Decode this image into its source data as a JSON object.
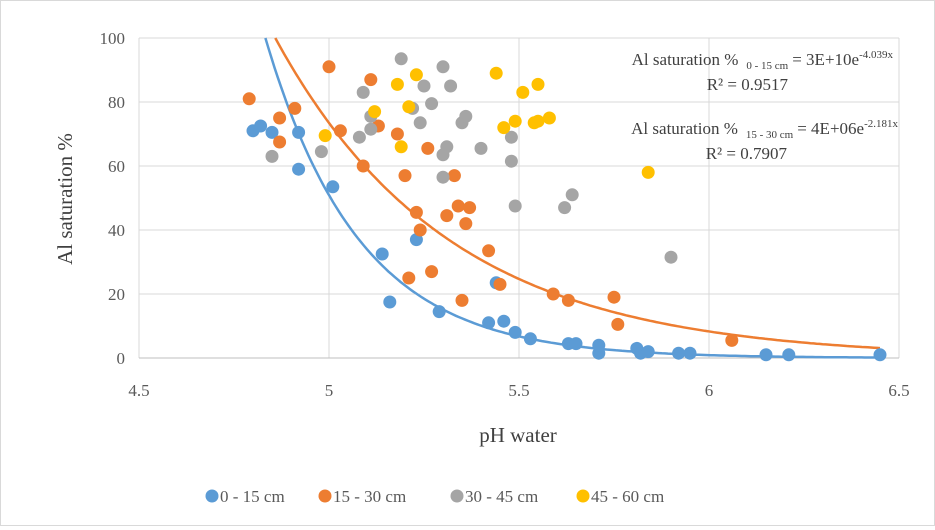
{
  "chart_data": {
    "type": "scatter",
    "xlabel": "pH water",
    "ylabel": "Al saturation %",
    "xlim": [
      4.5,
      6.5
    ],
    "ylim": [
      0,
      100
    ],
    "x_ticks": [
      "4.5",
      "5",
      "5.5",
      "6",
      "6.5"
    ],
    "y_ticks": [
      "0",
      "20",
      "40",
      "60",
      "80",
      "100"
    ],
    "grid": true,
    "legend_position": "bottom",
    "series": [
      {
        "name": "0 - 15 cm",
        "color": "#5b9bd5",
        "points": [
          [
            4.8,
            71
          ],
          [
            4.82,
            72.5
          ],
          [
            4.85,
            70.5
          ],
          [
            4.92,
            70.5
          ],
          [
            4.92,
            59
          ],
          [
            5.01,
            53.5
          ],
          [
            5.14,
            32.5
          ],
          [
            5.16,
            17.5
          ],
          [
            5.23,
            37
          ],
          [
            5.29,
            14.5
          ],
          [
            5.42,
            11
          ],
          [
            5.44,
            23.5
          ],
          [
            5.46,
            11.5
          ],
          [
            5.49,
            8
          ],
          [
            5.53,
            6
          ],
          [
            5.63,
            4.5
          ],
          [
            5.65,
            4.5
          ],
          [
            5.71,
            1.5
          ],
          [
            5.71,
            4
          ],
          [
            5.81,
            3
          ],
          [
            5.82,
            1.5
          ],
          [
            5.84,
            2
          ],
          [
            5.92,
            1.5
          ],
          [
            5.95,
            1.5
          ],
          [
            6.15,
            1
          ],
          [
            6.21,
            1
          ],
          [
            6.45,
            1
          ]
        ]
      },
      {
        "name": "15 - 30 cm",
        "color": "#ed7d31",
        "points": [
          [
            4.79,
            81
          ],
          [
            4.87,
            67.5
          ],
          [
            4.87,
            75
          ],
          [
            4.91,
            78
          ],
          [
            5.0,
            91
          ],
          [
            5.03,
            71
          ],
          [
            5.09,
            60
          ],
          [
            5.11,
            87
          ],
          [
            5.13,
            72.5
          ],
          [
            5.18,
            70
          ],
          [
            5.2,
            57
          ],
          [
            5.21,
            25
          ],
          [
            5.23,
            45.5
          ],
          [
            5.24,
            40
          ],
          [
            5.26,
            65.5
          ],
          [
            5.27,
            27
          ],
          [
            5.31,
            44.5
          ],
          [
            5.33,
            57
          ],
          [
            5.34,
            47.5
          ],
          [
            5.35,
            18
          ],
          [
            5.36,
            42
          ],
          [
            5.37,
            47
          ],
          [
            5.42,
            33.5
          ],
          [
            5.45,
            23
          ],
          [
            5.59,
            20
          ],
          [
            5.63,
            18
          ],
          [
            5.75,
            19
          ],
          [
            5.76,
            10.5
          ],
          [
            6.06,
            5.5
          ]
        ]
      },
      {
        "name": "30 - 45 cm",
        "color": "#a5a5a5",
        "points": [
          [
            4.85,
            63
          ],
          [
            4.98,
            64.5
          ],
          [
            5.08,
            69
          ],
          [
            5.09,
            83
          ],
          [
            5.11,
            71.5
          ],
          [
            5.11,
            75.5
          ],
          [
            5.19,
            93.5
          ],
          [
            5.22,
            78
          ],
          [
            5.24,
            73.5
          ],
          [
            5.25,
            85
          ],
          [
            5.27,
            79.5
          ],
          [
            5.3,
            56.5
          ],
          [
            5.3,
            63.5
          ],
          [
            5.3,
            91
          ],
          [
            5.31,
            66
          ],
          [
            5.32,
            85
          ],
          [
            5.35,
            73.5
          ],
          [
            5.36,
            75.5
          ],
          [
            5.4,
            65.5
          ],
          [
            5.48,
            69
          ],
          [
            5.48,
            61.5
          ],
          [
            5.49,
            47.5
          ],
          [
            5.62,
            47
          ],
          [
            5.64,
            51
          ],
          [
            5.9,
            31.5
          ]
        ]
      },
      {
        "name": "45 - 60 cm",
        "color": "#ffc000",
        "points": [
          [
            4.99,
            69.5
          ],
          [
            5.12,
            77
          ],
          [
            5.18,
            85.5
          ],
          [
            5.19,
            66
          ],
          [
            5.21,
            78.5
          ],
          [
            5.23,
            88.5
          ],
          [
            5.44,
            89
          ],
          [
            5.46,
            72
          ],
          [
            5.49,
            74
          ],
          [
            5.51,
            83
          ],
          [
            5.54,
            73.5
          ],
          [
            5.55,
            85.5
          ],
          [
            5.55,
            74
          ],
          [
            5.58,
            75
          ],
          [
            5.84,
            58
          ]
        ]
      }
    ],
    "trendlines": [
      {
        "series": "0 - 15 cm",
        "type": "exponential",
        "a": 30000000000.0,
        "b": -4.039,
        "r2": 0.9517
      },
      {
        "series": "15 - 30 cm",
        "type": "exponential",
        "a": 4000000.0,
        "b": -2.181,
        "r2": 0.7907
      }
    ],
    "annotations": [
      {
        "lead": "Al saturation %",
        "sub": "0 - 15 cm",
        "eq": "= 3E+10e",
        "exp": "-4.039x",
        "r2": "R² = 0.9517"
      },
      {
        "lead": "Al saturation %",
        "sub": "15 - 30 cm",
        "eq": "= 4E+06e",
        "exp": "-2.181x",
        "r2": "R² = 0.7907"
      }
    ]
  }
}
